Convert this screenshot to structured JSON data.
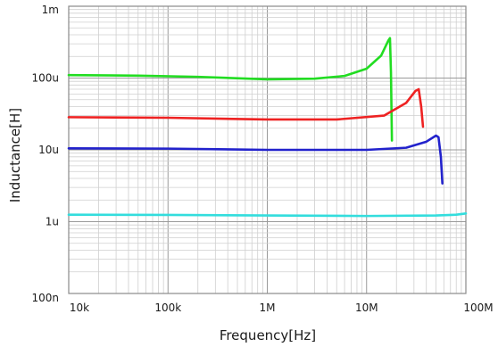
{
  "chart_data": {
    "type": "line",
    "title": "",
    "xlabel": "Frequency[Hz]",
    "ylabel": "Inductance[H]",
    "x_scale": "log",
    "y_scale": "log",
    "xlim": [
      10000,
      100000000
    ],
    "ylim": [
      1e-07,
      0.001
    ],
    "grid": true,
    "legend": "none",
    "x_ticks": [
      {
        "value": 10000,
        "label": "10k"
      },
      {
        "value": 100000,
        "label": "100k"
      },
      {
        "value": 1000000,
        "label": "1M"
      },
      {
        "value": 10000000,
        "label": "10M"
      },
      {
        "value": 100000000,
        "label": "100M"
      }
    ],
    "y_ticks": [
      {
        "value": 1e-07,
        "label": "100n"
      },
      {
        "value": 1e-06,
        "label": "1u"
      },
      {
        "value": 1e-05,
        "label": "10u"
      },
      {
        "value": 0.0001,
        "label": "100u"
      },
      {
        "value": 0.001,
        "label": "1m"
      }
    ],
    "series": [
      {
        "color": "#22dd22",
        "points": [
          [
            10000,
            0.00011
          ],
          [
            50000,
            0.000108
          ],
          [
            200000,
            0.000104
          ],
          [
            1000000,
            9.6e-05
          ],
          [
            3000000,
            9.8e-05
          ],
          [
            6000000,
            0.000107
          ],
          [
            10000000,
            0.000135
          ],
          [
            14000000,
            0.000205
          ],
          [
            16500000,
            0.00033
          ],
          [
            17200000,
            0.00036
          ],
          [
            17600000,
            0.00012
          ],
          [
            18000000,
            1.35e-05
          ]
        ]
      },
      {
        "color": "#ee2222",
        "points": [
          [
            10000,
            2.85e-05
          ],
          [
            100000,
            2.8e-05
          ],
          [
            1000000,
            2.65e-05
          ],
          [
            5000000,
            2.65e-05
          ],
          [
            15000000,
            3e-05
          ],
          [
            25000000,
            4.5e-05
          ],
          [
            31000000,
            6.6e-05
          ],
          [
            33500000,
            7e-05
          ],
          [
            35500000,
            4e-05
          ],
          [
            37000000,
            2.1e-05
          ]
        ]
      },
      {
        "color": "#2222cc",
        "points": [
          [
            10000,
            1.05e-05
          ],
          [
            100000,
            1.04e-05
          ],
          [
            1000000,
            1e-05
          ],
          [
            10000000,
            1e-05
          ],
          [
            25000000,
            1.07e-05
          ],
          [
            40000000,
            1.3e-05
          ],
          [
            50000000,
            1.58e-05
          ],
          [
            53000000,
            1.5e-05
          ],
          [
            56000000,
            8e-06
          ],
          [
            58000000,
            3.4e-06
          ]
        ]
      },
      {
        "color": "#33dddd",
        "points": [
          [
            10000,
            1.25e-06
          ],
          [
            100000,
            1.24e-06
          ],
          [
            1000000,
            1.22e-06
          ],
          [
            10000000,
            1.2e-06
          ],
          [
            50000000,
            1.22e-06
          ],
          [
            80000000,
            1.25e-06
          ],
          [
            100000000,
            1.3e-06
          ]
        ]
      }
    ]
  }
}
